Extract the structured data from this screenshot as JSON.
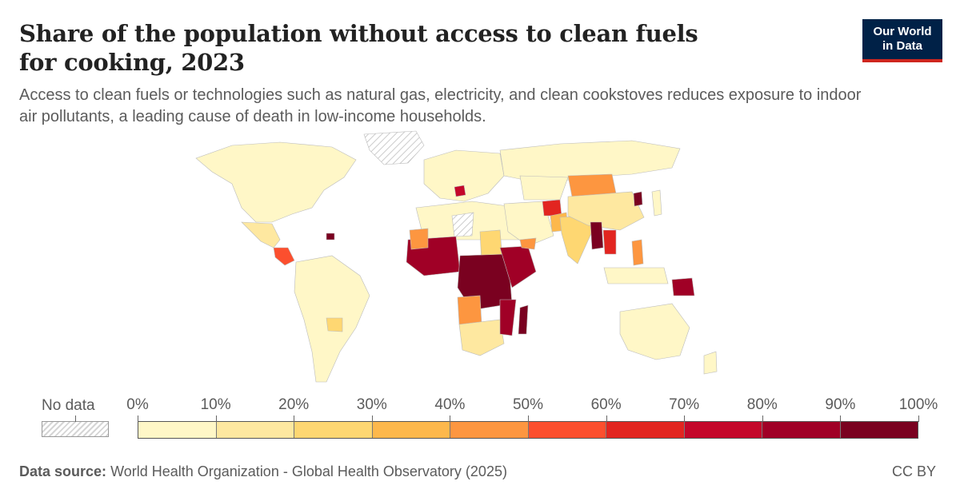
{
  "header": {
    "title": "Share of the population without access to clean fuels for cooking, 2023",
    "subtitle": "Access to clean fuels or technologies such as natural gas, electricity, and clean cookstoves reduces exposure to indoor air pollutants, a leading cause of death in low-income households."
  },
  "logo": {
    "line1": "Our World",
    "line2": "in Data"
  },
  "legend": {
    "no_data_label": "No data",
    "ticks": [
      "0%",
      "10%",
      "20%",
      "30%",
      "40%",
      "50%",
      "60%",
      "70%",
      "80%",
      "90%",
      "100%"
    ],
    "colors": [
      "#fff7c7",
      "#fee8a0",
      "#fed772",
      "#fdb84c",
      "#fd9640",
      "#fc4f2e",
      "#e22520",
      "#c4072a",
      "#a00026",
      "#7a0120"
    ]
  },
  "footer": {
    "source_label": "Data source:",
    "source_text": "World Health Organization - Global Health Observatory (2025)",
    "license": "CC BY"
  }
}
